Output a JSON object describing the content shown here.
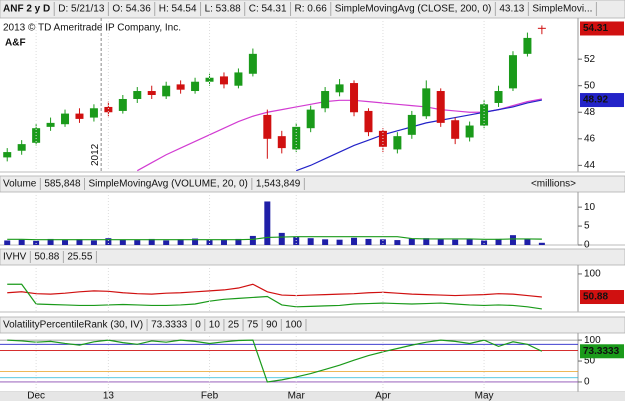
{
  "chart_data": [
    {
      "type": "candlestick",
      "header": [
        "ANF 2 y D",
        "D: 5/21/13",
        "O: 54.36",
        "H: 54.54",
        "L: 53.88",
        "C: 54.31",
        "R: 0.66"
      ],
      "copyright": "2013 © TD Ameritrade IP Company, Inc.",
      "logo": "A&F",
      "annotation": "2012",
      "categories": [
        null,
        null,
        "Dec",
        null,
        null,
        null,
        null,
        "13",
        null,
        null,
        null,
        null,
        null,
        null,
        "Feb",
        null,
        null,
        null,
        null,
        null,
        "Mar",
        null,
        null,
        null,
        null,
        null,
        "Apr",
        null,
        null,
        null,
        null,
        null,
        null,
        "May",
        null,
        null,
        null,
        null
      ],
      "open": [
        44.6,
        45.1,
        45.7,
        46.9,
        47.1,
        47.9,
        47.6,
        48.4,
        48.1,
        49.0,
        49.6,
        49.2,
        50.1,
        49.6,
        50.3,
        50.7,
        50.0,
        50.9,
        47.8,
        46.2,
        45.2,
        46.8,
        48.3,
        49.5,
        50.2,
        48.1,
        46.6,
        45.2,
        46.3,
        47.7,
        49.6,
        47.4,
        46.1,
        47.0,
        48.7,
        49.8,
        52.4,
        54.36
      ],
      "high": [
        45.3,
        45.9,
        47.1,
        47.6,
        48.2,
        48.3,
        48.6,
        48.8,
        49.3,
        49.9,
        50.0,
        50.3,
        50.4,
        50.6,
        50.9,
        51.0,
        51.3,
        52.8,
        48.2,
        46.6,
        47.2,
        48.5,
        49.9,
        50.5,
        50.4,
        48.3,
        46.8,
        46.5,
        48.1,
        50.4,
        49.8,
        47.6,
        47.3,
        48.9,
        50.0,
        52.6,
        54.0,
        54.54
      ],
      "low": [
        44.3,
        44.8,
        45.5,
        46.6,
        46.9,
        47.2,
        47.3,
        47.7,
        47.9,
        48.7,
        49.0,
        49.0,
        49.4,
        49.4,
        50.0,
        49.8,
        49.8,
        50.7,
        44.5,
        44.9,
        45.0,
        46.5,
        48.0,
        49.2,
        47.7,
        46.2,
        45.0,
        44.9,
        46.0,
        47.5,
        46.9,
        45.6,
        45.8,
        46.8,
        48.4,
        49.6,
        52.2,
        53.88
      ],
      "close": [
        45.0,
        45.6,
        46.8,
        47.2,
        47.9,
        47.5,
        48.3,
        48.0,
        49.0,
        49.6,
        49.3,
        50.0,
        49.7,
        50.3,
        50.6,
        50.1,
        51.0,
        52.4,
        46.0,
        45.3,
        46.9,
        48.2,
        49.6,
        50.1,
        48.0,
        46.5,
        45.4,
        46.2,
        47.8,
        49.8,
        47.2,
        46.0,
        47.0,
        48.6,
        49.6,
        52.3,
        53.6,
        54.31
      ],
      "up_color": "#1a9a1a",
      "down_color": "#d01010",
      "close_box": true,
      "series": [
        {
          "name": "SimpleMovingAvg (CLOSE, 200, 0)",
          "legend_value": "43.13",
          "color": "#d23cd2",
          "values": [
            null,
            null,
            null,
            null,
            null,
            null,
            null,
            null,
            null,
            43.6,
            44.2,
            44.8,
            45.3,
            45.8,
            46.3,
            46.8,
            47.3,
            47.7,
            48.0,
            48.2,
            48.4,
            48.6,
            48.8,
            48.9,
            48.9,
            48.8,
            48.7,
            48.6,
            48.5,
            48.4,
            48.2,
            48.1,
            48.0,
            48.0,
            48.2,
            48.5,
            48.8,
            49.0
          ]
        },
        {
          "name": "SimpleMovi...",
          "color": "#2323c8",
          "last_box": true,
          "values": [
            null,
            null,
            null,
            null,
            null,
            null,
            null,
            null,
            null,
            null,
            null,
            null,
            null,
            null,
            null,
            null,
            null,
            null,
            null,
            null,
            43.6,
            44.0,
            44.5,
            45.0,
            45.5,
            45.9,
            46.3,
            46.6,
            46.9,
            47.2,
            47.4,
            47.6,
            47.8,
            48.0,
            48.2,
            48.4,
            48.7,
            48.92
          ]
        }
      ],
      "ylim": [
        43.5,
        55.1
      ],
      "yticks": [
        44,
        46,
        48,
        50,
        52
      ]
    },
    {
      "type": "bar",
      "title": "Volume",
      "header_value": "585,848",
      "unit_label": "<millions>",
      "color": "#1f1fa8",
      "values": [
        1.2,
        1.4,
        1.1,
        1.6,
        1.3,
        1.5,
        1.2,
        1.8,
        1.4,
        1.3,
        1.6,
        1.2,
        1.5,
        1.7,
        1.3,
        1.4,
        1.6,
        2.4,
        11.5,
        3.2,
        2.1,
        1.8,
        1.5,
        1.4,
        1.9,
        1.6,
        1.5,
        1.3,
        1.7,
        1.8,
        1.6,
        1.4,
        1.5,
        1.2,
        1.6,
        2.6,
        1.7,
        0.585848
      ],
      "series": [
        {
          "name": "SimpleMovingAvg (VOLUME, 20, 0)",
          "legend_value": "1,543,849",
          "color": "#1a9a1a",
          "values": [
            1.5,
            1.5,
            1.4,
            1.4,
            1.4,
            1.4,
            1.4,
            1.4,
            1.4,
            1.4,
            1.4,
            1.4,
            1.4,
            1.4,
            1.4,
            1.4,
            1.4,
            1.5,
            2.0,
            2.1,
            2.2,
            2.2,
            2.2,
            2.2,
            2.2,
            2.2,
            2.2,
            2.2,
            1.7,
            1.6,
            1.6,
            1.6,
            1.6,
            1.5,
            1.5,
            1.6,
            1.6,
            1.543849
          ]
        }
      ],
      "ylim": [
        0,
        14
      ],
      "yticks": [
        0,
        5,
        10
      ]
    },
    {
      "type": "line",
      "title": "IVHV",
      "series": [
        {
          "legend_value": "50.88",
          "color": "#d01010",
          "last_box": true,
          "values": [
            60,
            62,
            58,
            57,
            59,
            62,
            64,
            63,
            60,
            58,
            57,
            59,
            60,
            62,
            64,
            66,
            70,
            78,
            62,
            55,
            54,
            55,
            56,
            57,
            58,
            60,
            61,
            59,
            57,
            56,
            55,
            54,
            55,
            56,
            58,
            57,
            54,
            50.88
          ]
        },
        {
          "legend_value": "25.55",
          "color": "#1a9a1a",
          "values": [
            78,
            78,
            36,
            35,
            34,
            33,
            33,
            34,
            35,
            34,
            33,
            33,
            34,
            36,
            42,
            46,
            48,
            50,
            52,
            34,
            30,
            31,
            32,
            33,
            36,
            37,
            38,
            37,
            36,
            37,
            38,
            36,
            34,
            33,
            34,
            33,
            30,
            25.55
          ]
        }
      ],
      "ylim": [
        19,
        119
      ],
      "yticks": [
        100
      ]
    },
    {
      "type": "line",
      "title": "VolatilityPercentileRank (30, IV)",
      "levels": [
        {
          "value": 0,
          "color": "#8a4ab0"
        },
        {
          "value": 10,
          "color": "#20b8d8"
        },
        {
          "value": 25,
          "color": "#e8a020"
        },
        {
          "value": 75,
          "color": "#d01010"
        },
        {
          "value": 90,
          "color": "#2323c8"
        },
        {
          "value": 100,
          "color": "#888888"
        }
      ],
      "series": [
        {
          "legend_value": "73.3333",
          "color": "#1a9a1a",
          "last_box": true,
          "values": [
            100,
            98,
            95,
            97,
            92,
            88,
            96,
            100,
            94,
            90,
            98,
            95,
            100,
            97,
            92,
            96,
            99,
            100,
            0,
            5,
            12,
            20,
            30,
            40,
            52,
            63,
            72,
            80,
            88,
            95,
            100,
            97,
            92,
            100,
            85,
            96,
            90,
            73.3333
          ]
        }
      ],
      "ylim": [
        -24,
        117
      ],
      "yticks": [
        0,
        50,
        100
      ]
    }
  ]
}
